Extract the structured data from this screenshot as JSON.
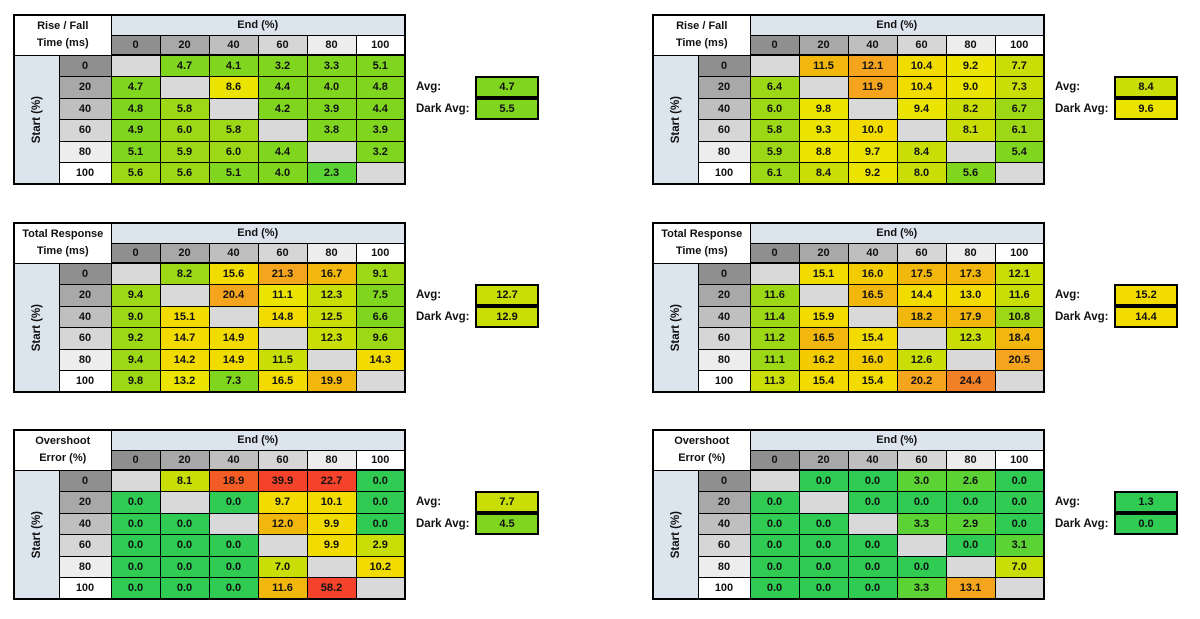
{
  "labels": {
    "avg": "Avg:",
    "dark_avg": "Dark Avg:"
  },
  "palette": {
    "E": "#d9d9d9",
    "G0": "#2fcb53",
    "G1": "#5cd334",
    "G2": "#80d51f",
    "G3": "#9cd815",
    "G4": "#c9de06",
    "Y0": "#eae400",
    "Y1": "#f2dc00",
    "Y2": "#f2cb00",
    "O1": "#f2b70c",
    "O2": "#f5a41e",
    "O3": "#f08126",
    "R0": "#f45c26",
    "R1": "#f4432a"
  },
  "header_grays": [
    "#8f8f8f",
    "#a8a8a8",
    "#bfbfbf",
    "#d6d6d6",
    "#ededed",
    "#ffffff"
  ],
  "group_bg": "#dce4ee",
  "chart_data": {
    "type": "heatmap",
    "col_group_label": "End (%)",
    "row_group_label": "Start (%)",
    "categories": [
      "0",
      "20",
      "40",
      "60",
      "80",
      "100"
    ],
    "tables": [
      {
        "title_line1": "Rise / Fall",
        "title_line2": "Time (ms)",
        "position": "top-left",
        "values": [
          [
            null,
            4.7,
            4.1,
            3.2,
            3.3,
            5.1
          ],
          [
            4.7,
            null,
            8.6,
            4.4,
            4.0,
            4.8
          ],
          [
            4.8,
            5.8,
            null,
            4.2,
            3.9,
            4.4
          ],
          [
            4.9,
            6.0,
            5.8,
            null,
            3.8,
            3.9
          ],
          [
            5.1,
            5.9,
            6.0,
            4.4,
            null,
            3.2
          ],
          [
            5.6,
            5.6,
            5.1,
            4.0,
            2.3,
            null
          ]
        ],
        "colors": [
          [
            "E",
            "G2",
            "G2",
            "G2",
            "G2",
            "G2"
          ],
          [
            "G2",
            "E",
            "Y0",
            "G2",
            "G2",
            "G2"
          ],
          [
            "G2",
            "G3",
            "E",
            "G2",
            "G2",
            "G2"
          ],
          [
            "G2",
            "G3",
            "G3",
            "E",
            "G2",
            "G2"
          ],
          [
            "G2",
            "G3",
            "G3",
            "G2",
            "E",
            "G2"
          ],
          [
            "G3",
            "G3",
            "G2",
            "G2",
            "G1",
            "E"
          ]
        ],
        "avg": 4.7,
        "avg_color": "G2",
        "dark_avg": 5.5,
        "dark_avg_color": "G2"
      },
      {
        "title_line1": "Rise / Fall",
        "title_line2": "Time (ms)",
        "position": "top-right",
        "values": [
          [
            null,
            11.5,
            12.1,
            10.4,
            9.2,
            7.7
          ],
          [
            6.4,
            null,
            11.9,
            10.4,
            9.0,
            7.3
          ],
          [
            6.0,
            9.8,
            null,
            9.4,
            8.2,
            6.7
          ],
          [
            5.8,
            9.3,
            10.0,
            null,
            8.1,
            6.1
          ],
          [
            5.9,
            8.8,
            9.7,
            8.4,
            null,
            5.4
          ],
          [
            6.1,
            8.4,
            9.2,
            8.0,
            5.6,
            null
          ]
        ],
        "colors": [
          [
            "E",
            "O1",
            "O2",
            "Y1",
            "Y0",
            "G4"
          ],
          [
            "G3",
            "E",
            "O2",
            "Y1",
            "Y0",
            "G4"
          ],
          [
            "G3",
            "Y0",
            "E",
            "Y0",
            "G4",
            "G3"
          ],
          [
            "G3",
            "Y0",
            "Y1",
            "E",
            "G4",
            "G3"
          ],
          [
            "G3",
            "Y0",
            "Y0",
            "G4",
            "E",
            "G2"
          ],
          [
            "G3",
            "G4",
            "Y0",
            "G4",
            "G2",
            "E"
          ]
        ],
        "avg": 8.4,
        "avg_color": "G4",
        "dark_avg": 9.6,
        "dark_avg_color": "Y0"
      },
      {
        "title_line1": "Total Response",
        "title_line2": "Time (ms)",
        "position": "middle-left",
        "values": [
          [
            null,
            8.2,
            15.6,
            21.3,
            16.7,
            9.1
          ],
          [
            9.4,
            null,
            20.4,
            11.1,
            12.3,
            7.5
          ],
          [
            9.0,
            15.1,
            null,
            14.8,
            12.5,
            6.6
          ],
          [
            9.2,
            14.7,
            14.9,
            null,
            12.3,
            9.6
          ],
          [
            9.4,
            14.2,
            14.9,
            11.5,
            null,
            14.3
          ],
          [
            9.8,
            13.2,
            7.3,
            16.5,
            19.9,
            null
          ]
        ],
        "colors": [
          [
            "E",
            "G3",
            "Y1",
            "O2",
            "O1",
            "G3"
          ],
          [
            "G3",
            "E",
            "O2",
            "Y0",
            "G4",
            "G2"
          ],
          [
            "G3",
            "Y1",
            "E",
            "Y1",
            "G4",
            "G2"
          ],
          [
            "G3",
            "Y1",
            "Y1",
            "E",
            "G4",
            "G3"
          ],
          [
            "G3",
            "Y1",
            "Y1",
            "G4",
            "E",
            "Y1"
          ],
          [
            "G3",
            "Y0",
            "G2",
            "Y1",
            "O1",
            "E"
          ]
        ],
        "avg": 12.7,
        "avg_color": "G4",
        "dark_avg": 12.9,
        "dark_avg_color": "G4"
      },
      {
        "title_line1": "Total Response",
        "title_line2": "Time (ms)",
        "position": "middle-right",
        "values": [
          [
            null,
            15.1,
            16.0,
            17.5,
            17.3,
            12.1
          ],
          [
            11.6,
            null,
            16.5,
            14.4,
            13.0,
            11.6
          ],
          [
            11.4,
            15.9,
            null,
            18.2,
            17.9,
            10.8
          ],
          [
            11.2,
            16.5,
            15.4,
            null,
            12.3,
            18.4
          ],
          [
            11.1,
            16.2,
            16.0,
            12.6,
            null,
            20.5
          ],
          [
            11.3,
            15.4,
            15.4,
            20.2,
            24.4,
            null
          ]
        ],
        "colors": [
          [
            "E",
            "Y1",
            "Y2",
            "O1",
            "O1",
            "G4"
          ],
          [
            "G3",
            "E",
            "O1",
            "Y1",
            "Y1",
            "G4"
          ],
          [
            "G3",
            "Y1",
            "E",
            "O1",
            "O1",
            "G3"
          ],
          [
            "G3",
            "O1",
            "Y1",
            "E",
            "G4",
            "O1"
          ],
          [
            "G3",
            "Y2",
            "Y2",
            "G4",
            "E",
            "O2"
          ],
          [
            "G4",
            "Y1",
            "Y1",
            "O2",
            "O3",
            "E"
          ]
        ],
        "avg": 15.2,
        "avg_color": "Y1",
        "dark_avg": 14.4,
        "dark_avg_color": "Y1"
      },
      {
        "title_line1": "Overshoot",
        "title_line2": "Error (%)",
        "position": "bottom-left",
        "values": [
          [
            null,
            8.1,
            18.9,
            39.9,
            22.7,
            0.0
          ],
          [
            0.0,
            null,
            0.0,
            9.7,
            10.1,
            0.0
          ],
          [
            0.0,
            0.0,
            null,
            12.0,
            9.9,
            0.0
          ],
          [
            0.0,
            0.0,
            0.0,
            null,
            9.9,
            2.9
          ],
          [
            0.0,
            0.0,
            0.0,
            7.0,
            null,
            10.2
          ],
          [
            0.0,
            0.0,
            0.0,
            11.6,
            58.2,
            null
          ]
        ],
        "colors": [
          [
            "E",
            "G4",
            "R0",
            "R1",
            "R1",
            "G0"
          ],
          [
            "G0",
            "E",
            "G0",
            "Y1",
            "Y1",
            "G0"
          ],
          [
            "G0",
            "G0",
            "E",
            "O1",
            "Y1",
            "G0"
          ],
          [
            "G0",
            "G0",
            "G0",
            "E",
            "Y1",
            "G4"
          ],
          [
            "G0",
            "G0",
            "G0",
            "G4",
            "E",
            "Y1"
          ],
          [
            "G0",
            "G0",
            "G0",
            "O1",
            "R1",
            "E"
          ]
        ],
        "avg": 7.7,
        "avg_color": "G4",
        "dark_avg": 4.5,
        "dark_avg_color": "G2"
      },
      {
        "title_line1": "Overshoot",
        "title_line2": "Error (%)",
        "position": "bottom-right",
        "values": [
          [
            null,
            0.0,
            0.0,
            3.0,
            2.6,
            0.0
          ],
          [
            0.0,
            null,
            0.0,
            0.0,
            0.0,
            0.0
          ],
          [
            0.0,
            0.0,
            null,
            3.3,
            2.9,
            0.0
          ],
          [
            0.0,
            0.0,
            0.0,
            null,
            0.0,
            3.1
          ],
          [
            0.0,
            0.0,
            0.0,
            0.0,
            null,
            7.0
          ],
          [
            0.0,
            0.0,
            0.0,
            3.3,
            13.1,
            null
          ]
        ],
        "colors": [
          [
            "E",
            "G0",
            "G0",
            "G1",
            "G1",
            "G0"
          ],
          [
            "G0",
            "E",
            "G0",
            "G0",
            "G0",
            "G0"
          ],
          [
            "G0",
            "G0",
            "E",
            "G1",
            "G1",
            "G0"
          ],
          [
            "G0",
            "G0",
            "G0",
            "E",
            "G0",
            "G1"
          ],
          [
            "G0",
            "G0",
            "G0",
            "G0",
            "E",
            "G4"
          ],
          [
            "G0",
            "G0",
            "G0",
            "G1",
            "O2",
            "E"
          ]
        ],
        "avg": 1.3,
        "avg_color": "G0",
        "dark_avg": 0.0,
        "dark_avg_color": "G0"
      }
    ]
  }
}
